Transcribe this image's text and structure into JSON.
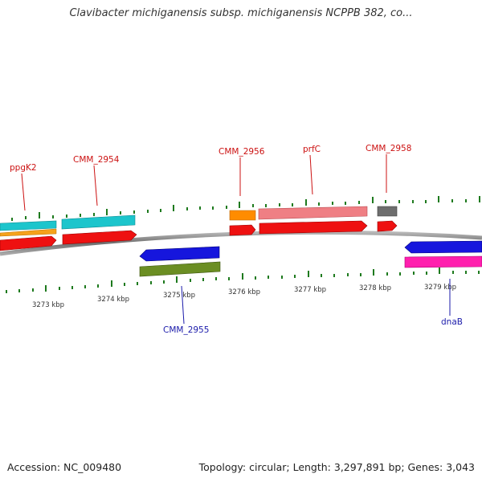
{
  "title": "Clavibacter michiganensis subsp. michiganensis NCPPB 382, co...",
  "footer": {
    "accession": "Accession: NC_009480",
    "summary": "Topology: circular; Length: 3,297,891 bp; Genes: 3,043"
  },
  "colors": {
    "backbone": "#8c8c8c",
    "tick": "#1e7a1e",
    "label_top": "#cc1111",
    "label_bottom": "#1a1aaa"
  },
  "genes_top": [
    {
      "name": "ppgK2"
    },
    {
      "name": "CMM_2954"
    },
    {
      "name": "CMM_2956"
    },
    {
      "name": "prfC"
    },
    {
      "name": "CMM_2958"
    }
  ],
  "genes_bottom": [
    {
      "name": "CMM_2955"
    },
    {
      "name": "dnaB"
    }
  ],
  "scale": [
    {
      "label": "3273 kbp"
    },
    {
      "label": "3274 kbp"
    },
    {
      "label": "3275 kbp"
    },
    {
      "label": "3276 kbp"
    },
    {
      "label": "3277 kbp"
    },
    {
      "label": "3278 kbp"
    },
    {
      "label": "3279 kbp"
    }
  ]
}
